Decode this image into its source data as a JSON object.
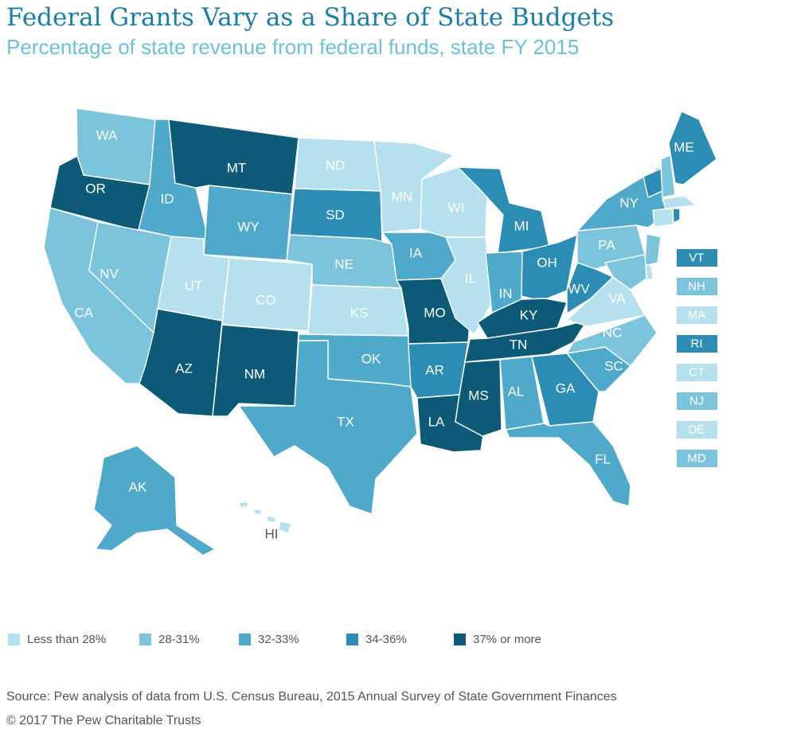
{
  "title": "Federal Grants Vary as a Share of State Budgets",
  "subtitle": "Percentage of state revenue from federal funds, state FY 2015",
  "colors": {
    "c1": "#b5e1ee",
    "c2": "#7cc4dc",
    "c3": "#4fa9cb",
    "c4": "#2b8db4",
    "c5": "#0d5a78"
  },
  "legend": [
    {
      "label": "Less than 28%",
      "color_key": "c1"
    },
    {
      "label": "28-31%",
      "color_key": "c2"
    },
    {
      "label": "32-33%",
      "color_key": "c3"
    },
    {
      "label": "34-36%",
      "color_key": "c4"
    },
    {
      "label": "37% or more",
      "color_key": "c5"
    }
  ],
  "states": [
    {
      "abbr": "WA",
      "bin": "c2"
    },
    {
      "abbr": "OR",
      "bin": "c5"
    },
    {
      "abbr": "CA",
      "bin": "c2"
    },
    {
      "abbr": "NV",
      "bin": "c2"
    },
    {
      "abbr": "ID",
      "bin": "c3"
    },
    {
      "abbr": "MT",
      "bin": "c5"
    },
    {
      "abbr": "WY",
      "bin": "c3"
    },
    {
      "abbr": "UT",
      "bin": "c1"
    },
    {
      "abbr": "CO",
      "bin": "c1"
    },
    {
      "abbr": "AZ",
      "bin": "c5"
    },
    {
      "abbr": "NM",
      "bin": "c5"
    },
    {
      "abbr": "ND",
      "bin": "c1"
    },
    {
      "abbr": "SD",
      "bin": "c4"
    },
    {
      "abbr": "NE",
      "bin": "c2"
    },
    {
      "abbr": "KS",
      "bin": "c1"
    },
    {
      "abbr": "OK",
      "bin": "c3"
    },
    {
      "abbr": "TX",
      "bin": "c3"
    },
    {
      "abbr": "MN",
      "bin": "c1"
    },
    {
      "abbr": "IA",
      "bin": "c3"
    },
    {
      "abbr": "MO",
      "bin": "c5"
    },
    {
      "abbr": "AR",
      "bin": "c4"
    },
    {
      "abbr": "LA",
      "bin": "c5"
    },
    {
      "abbr": "WI",
      "bin": "c1"
    },
    {
      "abbr": "IL",
      "bin": "c1"
    },
    {
      "abbr": "MI",
      "bin": "c4"
    },
    {
      "abbr": "IN",
      "bin": "c3"
    },
    {
      "abbr": "OH",
      "bin": "c4"
    },
    {
      "abbr": "KY",
      "bin": "c5"
    },
    {
      "abbr": "TN",
      "bin": "c5"
    },
    {
      "abbr": "MS",
      "bin": "c5"
    },
    {
      "abbr": "AL",
      "bin": "c3"
    },
    {
      "abbr": "GA",
      "bin": "c4"
    },
    {
      "abbr": "FL",
      "bin": "c3"
    },
    {
      "abbr": "SC",
      "bin": "c3"
    },
    {
      "abbr": "NC",
      "bin": "c2"
    },
    {
      "abbr": "VA",
      "bin": "c1"
    },
    {
      "abbr": "WV",
      "bin": "c4"
    },
    {
      "abbr": "PA",
      "bin": "c2"
    },
    {
      "abbr": "NY",
      "bin": "c3"
    },
    {
      "abbr": "ME",
      "bin": "c4"
    },
    {
      "abbr": "AK",
      "bin": "c3"
    },
    {
      "abbr": "HI",
      "bin": "c1"
    },
    {
      "abbr": "VT",
      "bin": "c4"
    },
    {
      "abbr": "NH",
      "bin": "c2"
    },
    {
      "abbr": "MA",
      "bin": "c1"
    },
    {
      "abbr": "RI",
      "bin": "c4"
    },
    {
      "abbr": "CT",
      "bin": "c1"
    },
    {
      "abbr": "NJ",
      "bin": "c2"
    },
    {
      "abbr": "DE",
      "bin": "c1"
    },
    {
      "abbr": "MD",
      "bin": "c2"
    }
  ],
  "source": "Source: Pew analysis of data from U.S. Census Bureau, 2015 Annual Survey of State Government Finances",
  "copyright": "© 2017 The Pew Charitable Trusts"
}
